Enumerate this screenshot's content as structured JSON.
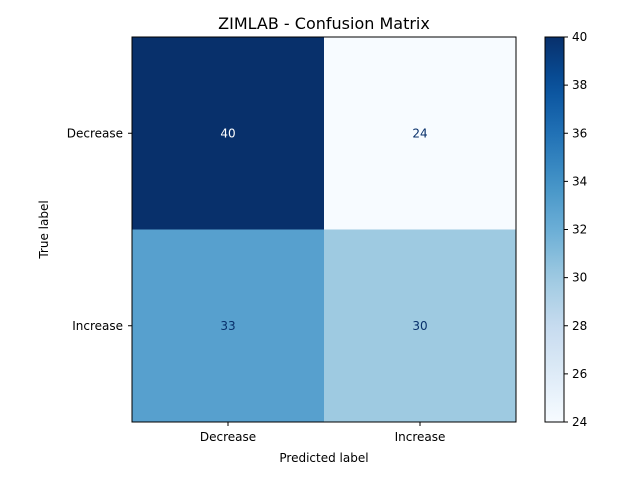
{
  "chart_data": {
    "type": "heatmap",
    "title": "ZIMLAB - Confusion Matrix",
    "xlabel": "Predicted label",
    "ylabel": "True label",
    "x_categories": [
      "Decrease",
      "Increase"
    ],
    "y_categories": [
      "Decrease",
      "Increase"
    ],
    "matrix": [
      [
        40,
        24
      ],
      [
        33,
        30
      ]
    ],
    "colormap": "Blues",
    "colorbar": {
      "min": 24,
      "max": 40,
      "ticks": [
        24,
        26,
        28,
        30,
        32,
        34,
        36,
        38,
        40
      ]
    },
    "grid": false
  }
}
